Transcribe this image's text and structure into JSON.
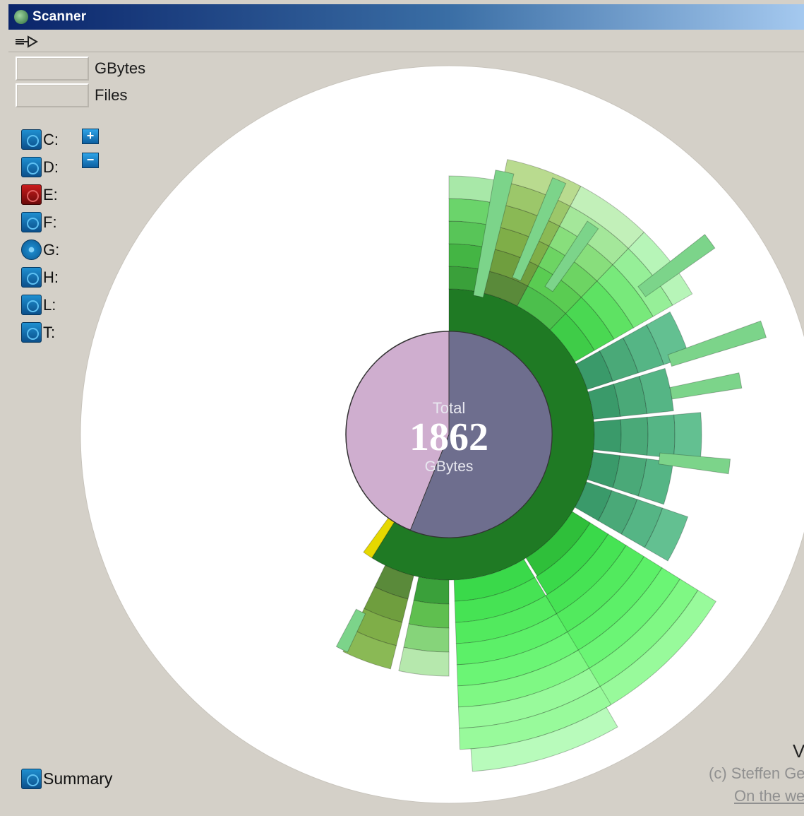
{
  "window": {
    "title": "Scanner"
  },
  "stats": {
    "gbytes_label": "GBytes",
    "files_label": "Files"
  },
  "drives": [
    {
      "label": "C:",
      "icon": "hard-drive-icon"
    },
    {
      "label": "D:",
      "icon": "hard-drive-icon"
    },
    {
      "label": "E:",
      "icon": "hard-drive-red-icon"
    },
    {
      "label": "F:",
      "icon": "hard-drive-icon"
    },
    {
      "label": "G:",
      "icon": "cd-drive-icon"
    },
    {
      "label": "H:",
      "icon": "hard-drive-icon"
    },
    {
      "label": "L:",
      "icon": "hard-drive-icon"
    },
    {
      "label": "T:",
      "icon": "hard-drive-icon"
    }
  ],
  "zoom": {
    "plus": "+",
    "minus": "−"
  },
  "summary": {
    "label": "Summary"
  },
  "center": {
    "line1": "Total",
    "value": "1862",
    "unit": "GBytes"
  },
  "footer": {
    "version": "V",
    "copyright": "(c) Steffen Ge",
    "web": "On the we"
  },
  "colors": {
    "disc": "#ffffff",
    "center_free": "#cfaecf",
    "center_used": "#6e6e8e",
    "ring_dark": "#1f7a24",
    "accent_yellow": "#e6d800"
  }
}
